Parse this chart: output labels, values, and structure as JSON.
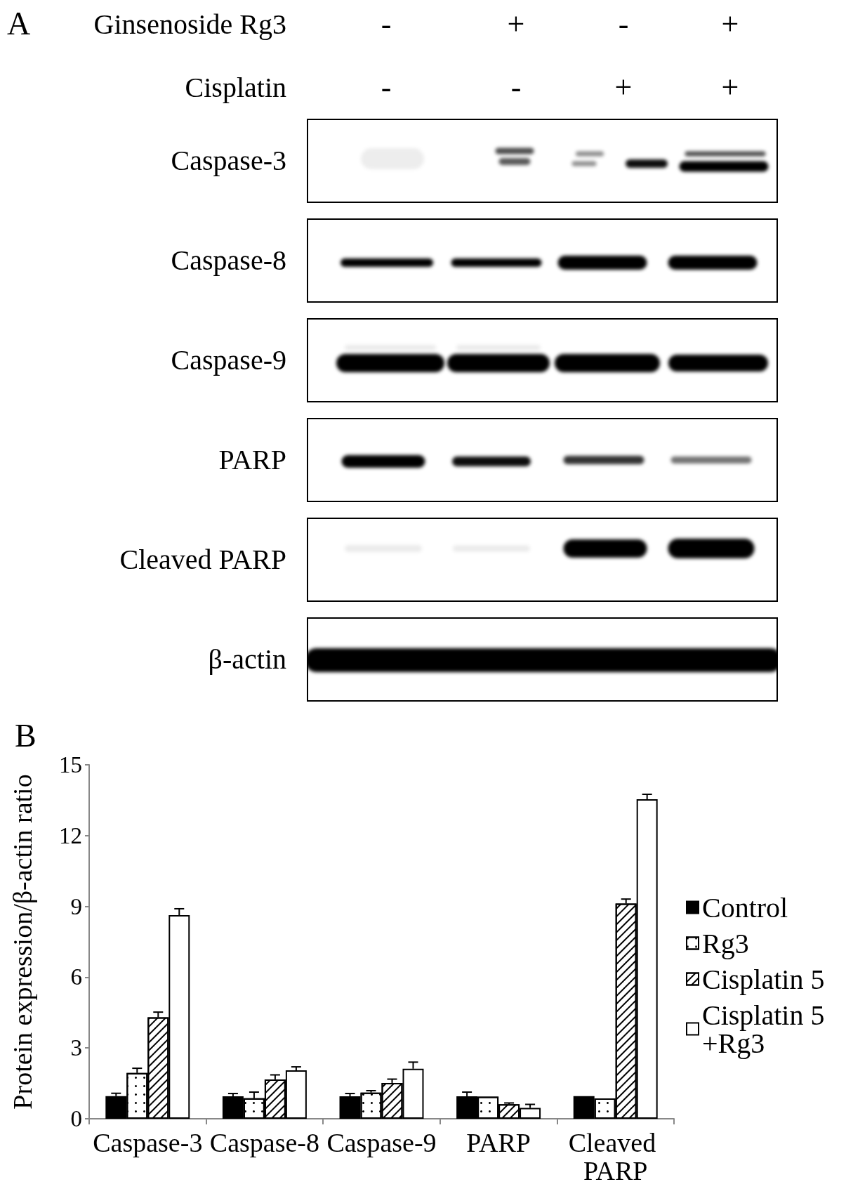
{
  "chart_data": [
    {
      "type": "other",
      "title": "A",
      "annotations": [
        "Ginsenoside Rg3",
        "-",
        "+",
        "-",
        "+",
        "Cisplatin",
        "-",
        "-",
        "+",
        "+",
        "Caspase-3",
        "Caspase-8",
        "Caspase-9",
        "PARP",
        "Cleaved PARP",
        "β-actin"
      ]
    },
    {
      "type": "bar",
      "title": "B",
      "ylabel": "Protein expression/β-actin ratio",
      "categories": [
        "Caspase-3",
        "Caspase-8",
        "Caspase-9",
        "PARP",
        "Cleaved PARP"
      ],
      "series": [
        {
          "name": "Control",
          "color": "#000000",
          "values": [
            0.96,
            0.95,
            0.95,
            0.95,
            0.96
          ],
          "errors": [
            0.12,
            0.12,
            0.12,
            0.18,
            null
          ]
        },
        {
          "name": "Rg3",
          "color": "#ffffff",
          "values": [
            1.94,
            0.87,
            1.11,
            0.94,
            0.86
          ],
          "errors": [
            0.2,
            0.26,
            0.08,
            null,
            null
          ]
        },
        {
          "name": "Cisplatin 5",
          "color": "#ffffff",
          "values": [
            4.3,
            1.67,
            1.52,
            0.62,
            9.12
          ],
          "errors": [
            0.22,
            0.19,
            0.16,
            0.05,
            0.19
          ]
        },
        {
          "name": "Cisplatin 5 +Rg3",
          "color": "#ffffff",
          "values": [
            8.63,
            2.05,
            2.12,
            0.46,
            13.54
          ],
          "errors": [
            0.27,
            0.15,
            0.28,
            0.15,
            0.21
          ]
        }
      ],
      "ylim": [
        0,
        15
      ],
      "yticks": [
        0,
        3,
        6,
        9,
        12,
        15
      ],
      "grid": false,
      "legend": "right"
    }
  ]
}
